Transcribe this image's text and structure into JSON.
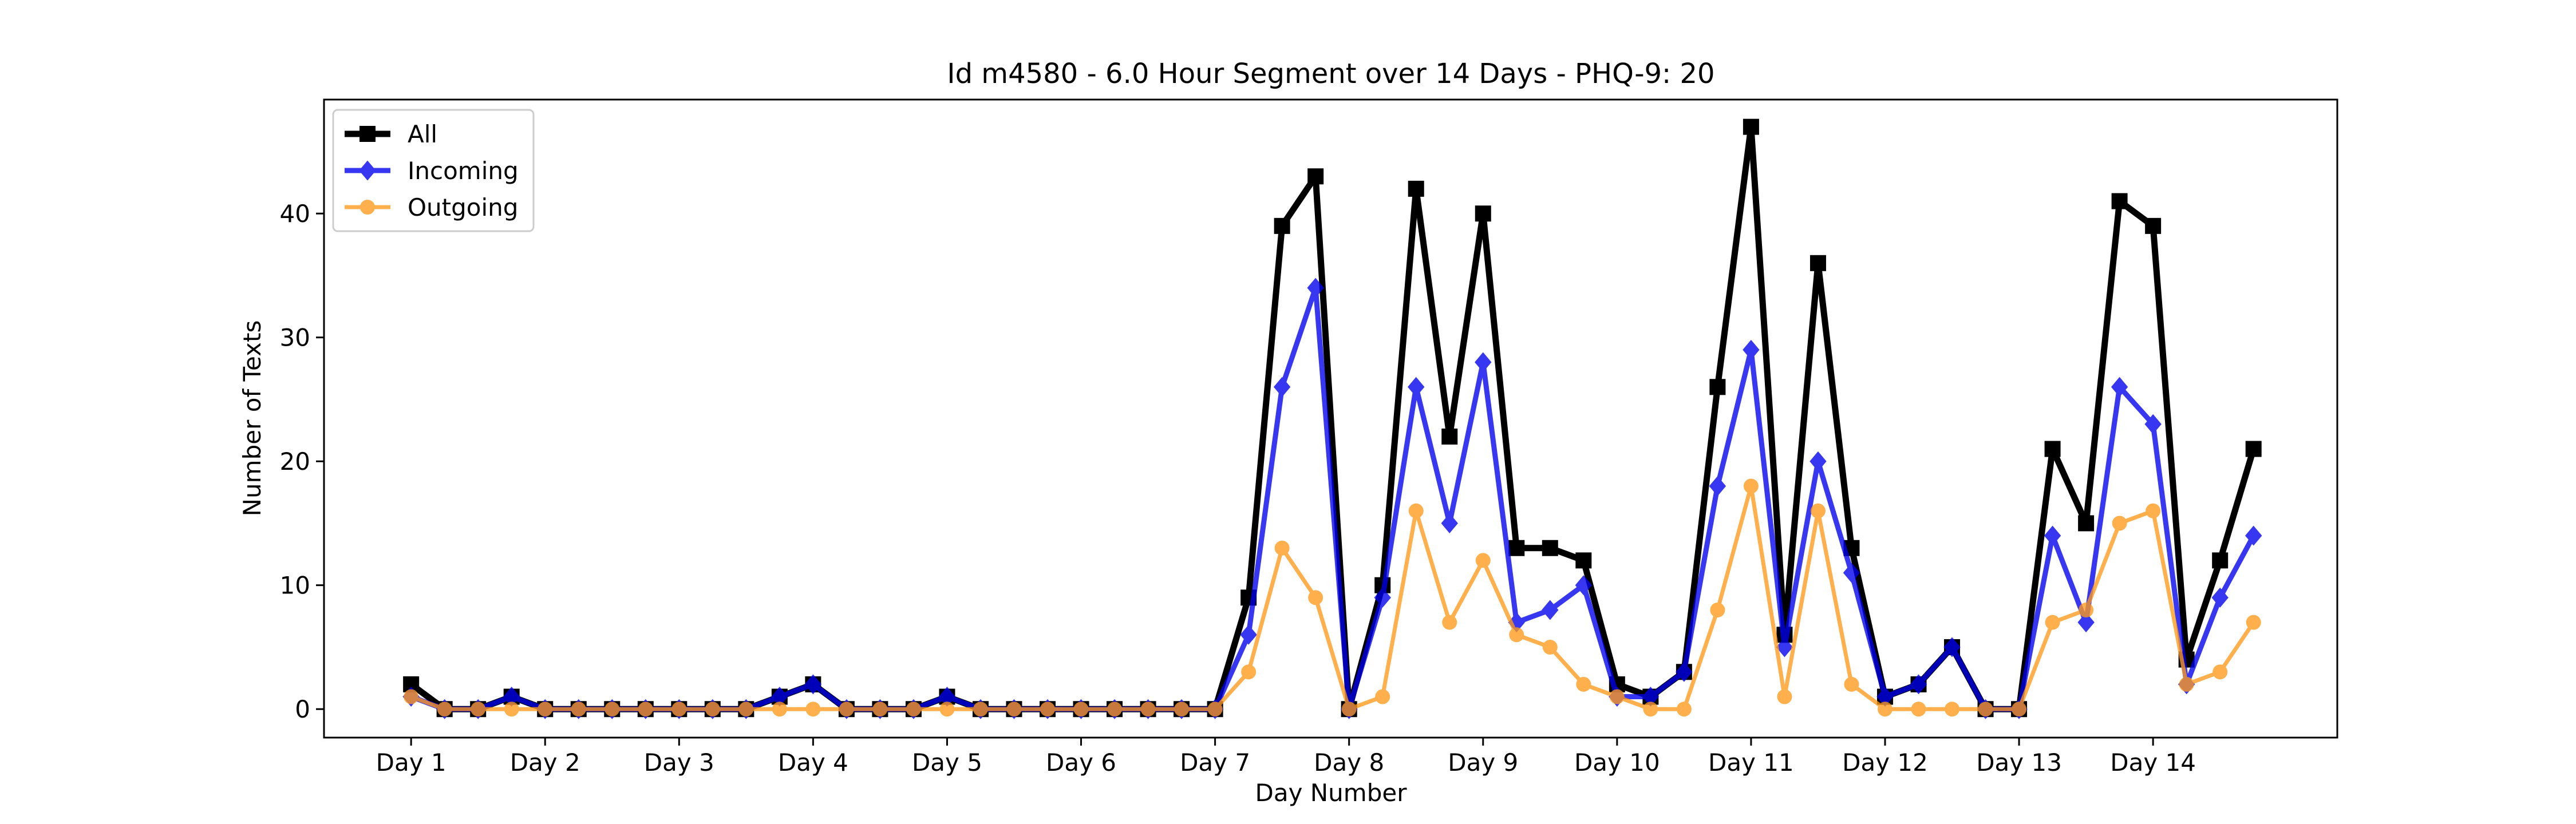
{
  "chart_data": {
    "type": "line",
    "title": "Id m4580 - 6.0 Hour Segment over 14 Days - PHQ-9: 20",
    "xlabel": "Day Number",
    "ylabel": "Number of Texts",
    "xlim": [
      -2.6,
      57.5
    ],
    "ylim": [
      -2.3,
      49.2
    ],
    "yticks": [
      0,
      10,
      20,
      30,
      40
    ],
    "xticks": [
      {
        "pos": 0,
        "label": "Day 1"
      },
      {
        "pos": 4,
        "label": "Day 2"
      },
      {
        "pos": 8,
        "label": "Day 3"
      },
      {
        "pos": 12,
        "label": "Day 4"
      },
      {
        "pos": 16,
        "label": "Day 5"
      },
      {
        "pos": 20,
        "label": "Day 6"
      },
      {
        "pos": 24,
        "label": "Day 7"
      },
      {
        "pos": 28,
        "label": "Day 8"
      },
      {
        "pos": 32,
        "label": "Day 9"
      },
      {
        "pos": 36,
        "label": "Day 10"
      },
      {
        "pos": 40,
        "label": "Day 11"
      },
      {
        "pos": 44,
        "label": "Day 12"
      },
      {
        "pos": 48,
        "label": "Day 13"
      },
      {
        "pos": 52,
        "label": "Day 14"
      }
    ],
    "legend_position": "top-left",
    "grid": false,
    "series": [
      {
        "name": "All",
        "color": "#000000",
        "marker": "square",
        "values": [
          2,
          0,
          0,
          1,
          0,
          0,
          0,
          0,
          0,
          0,
          0,
          1,
          2,
          0,
          0,
          0,
          1,
          0,
          0,
          0,
          0,
          0,
          0,
          0,
          0,
          9,
          39,
          43,
          0,
          10,
          42,
          22,
          40,
          13,
          13,
          12,
          2,
          1,
          3,
          26,
          47,
          6,
          36,
          13,
          1,
          2,
          5,
          0,
          0,
          21,
          15,
          41,
          39,
          4,
          12,
          21
        ]
      },
      {
        "name": "Incoming",
        "color": "#0000ee",
        "marker": "diamond",
        "values": [
          1,
          0,
          0,
          1,
          0,
          0,
          0,
          0,
          0,
          0,
          0,
          1,
          2,
          0,
          0,
          0,
          1,
          0,
          0,
          0,
          0,
          0,
          0,
          0,
          0,
          6,
          26,
          34,
          0,
          9,
          26,
          15,
          28,
          7,
          8,
          10,
          1,
          1,
          3,
          18,
          29,
          5,
          20,
          11,
          1,
          2,
          5,
          0,
          0,
          14,
          7,
          26,
          23,
          2,
          9,
          14
        ]
      },
      {
        "name": "Outgoing",
        "color": "#ff9a1a",
        "marker": "circle",
        "values": [
          1,
          0,
          0,
          0,
          0,
          0,
          0,
          0,
          0,
          0,
          0,
          0,
          0,
          0,
          0,
          0,
          0,
          0,
          0,
          0,
          0,
          0,
          0,
          0,
          0,
          3,
          13,
          9,
          0,
          1,
          16,
          7,
          12,
          6,
          5,
          2,
          1,
          0,
          0,
          8,
          18,
          1,
          16,
          2,
          0,
          0,
          0,
          0,
          0,
          7,
          8,
          15,
          16,
          2,
          3,
          7
        ]
      }
    ]
  }
}
